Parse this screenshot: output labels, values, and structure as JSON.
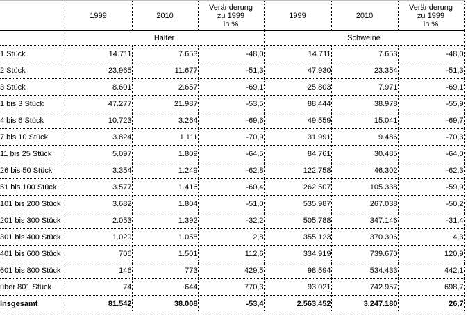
{
  "page": {
    "background_color": "#ffffff",
    "border_color": "#000000",
    "top_edge_color": "#bdbdbd",
    "text_color": "#000000"
  },
  "table": {
    "columns": [
      {
        "label": ""
      },
      {
        "label": "1999"
      },
      {
        "label": "2010"
      },
      {
        "label": "Veränderung\nzu 1999\nin %"
      },
      {
        "label": "1999"
      },
      {
        "label": "2010"
      },
      {
        "label": "Veränderung\nzu 1999\nin %"
      }
    ],
    "group_headers": {
      "left": "Halter",
      "right": "Schweine"
    },
    "rows": [
      {
        "label": "1 Stück",
        "values": [
          "14.711",
          "7.653",
          "-48,0",
          "14.711",
          "7.653",
          "-48,0"
        ]
      },
      {
        "label": "2 Stück",
        "values": [
          "23.965",
          "11.677",
          "-51,3",
          "47.930",
          "23.354",
          "-51,3"
        ]
      },
      {
        "label": "3 Stück",
        "values": [
          "8.601",
          "2.657",
          "-69,1",
          "25.803",
          "7.971",
          "-69,1"
        ]
      },
      {
        "label": "1 bis 3 Stück",
        "values": [
          "47.277",
          "21.987",
          "-53,5",
          "88.444",
          "38.978",
          "-55,9"
        ]
      },
      {
        "label": "4 bis 6 Stück",
        "values": [
          "10.723",
          "3.264",
          "-69,6",
          "49.559",
          "15.041",
          "-69,7"
        ]
      },
      {
        "label": "7 bis 10 Stück",
        "values": [
          "3.824",
          "1.111",
          "-70,9",
          "31.991",
          "9.486",
          "-70,3"
        ]
      },
      {
        "label": "11 bis 25 Stück",
        "values": [
          "5.097",
          "1.809",
          "-64,5",
          "84.761",
          "30.485",
          "-64,0"
        ]
      },
      {
        "label": "26 bis 50 Stück",
        "values": [
          "3.354",
          "1.249",
          "-62,8",
          "122.758",
          "46.302",
          "-62,3"
        ]
      },
      {
        "label": "51 bis 100 Stück",
        "values": [
          "3.577",
          "1.416",
          "-60,4",
          "262.507",
          "105.338",
          "-59,9"
        ]
      },
      {
        "label": "101 bis 200 Stück",
        "values": [
          "3.682",
          "1.804",
          "-51,0",
          "535.987",
          "267.038",
          "-50,2"
        ]
      },
      {
        "label": "201 bis 300 Stück",
        "values": [
          "2.053",
          "1.392",
          "-32,2",
          "505.788",
          "347.146",
          "-31,4"
        ]
      },
      {
        "label": "301 bis 400 Stück",
        "values": [
          "1.029",
          "1.058",
          "2,8",
          "355.123",
          "370.306",
          "4,3"
        ]
      },
      {
        "label": "401 bis 600 Stück",
        "values": [
          "706",
          "1.501",
          "112,6",
          "334.919",
          "739.670",
          "120,9"
        ]
      },
      {
        "label": "601 bis 800 Stück",
        "values": [
          "146",
          "773",
          "429,5",
          "98.594",
          "534.433",
          "442,1"
        ]
      },
      {
        "label": "über 801 Stück",
        "values": [
          "74",
          "644",
          "770,3",
          "93.021",
          "742.957",
          "698,7"
        ]
      },
      {
        "label": "Insgesamt",
        "bold": true,
        "values": [
          "81.542",
          "38.008",
          "-53,4",
          "2.563.452",
          "3.247.180",
          "26,7"
        ]
      }
    ]
  }
}
